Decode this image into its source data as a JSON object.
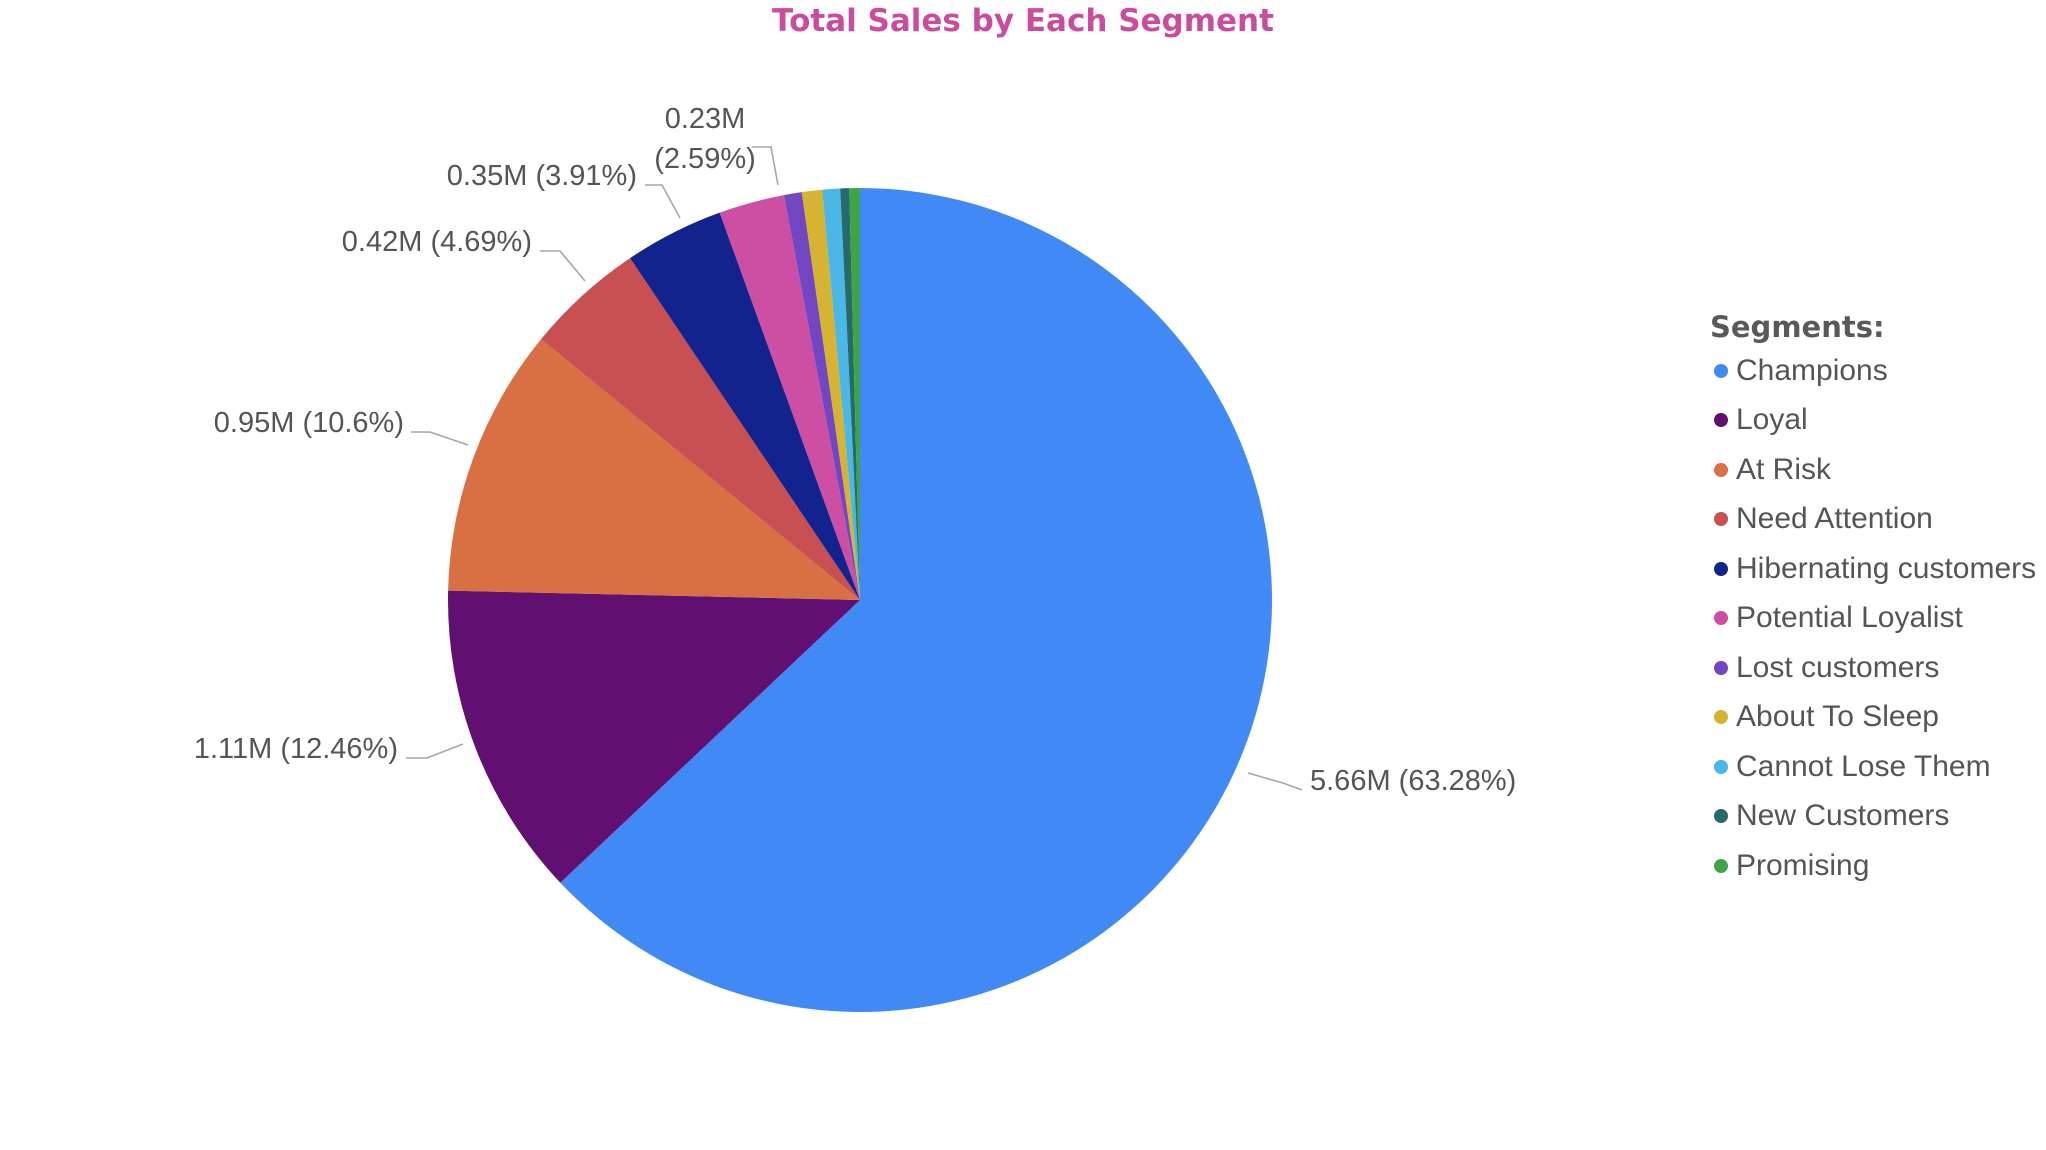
{
  "chart_data": {
    "type": "pie",
    "title": "Total Sales by Each Segment",
    "legend_title": "Segments:",
    "legend_position": "right",
    "slices": [
      {
        "name": "Champions",
        "value": 5.66,
        "percent": 63.28,
        "label": "5.66M (63.28%)",
        "color": "#418af5"
      },
      {
        "name": "Loyal",
        "value": 1.11,
        "percent": 12.46,
        "label": "1.11M (12.46%)",
        "color": "#610f70"
      },
      {
        "name": "At Risk",
        "value": 0.95,
        "percent": 10.6,
        "label": "0.95M (10.6%)",
        "color": "#d87043"
      },
      {
        "name": "Need Attention",
        "value": 0.42,
        "percent": 4.69,
        "label": "0.42M (4.69%)",
        "color": "#c84f52"
      },
      {
        "name": "Hibernating customers",
        "value": 0.35,
        "percent": 3.91,
        "label": "0.35M (3.91%)",
        "color": "#13238e"
      },
      {
        "name": "Potential Loyalist",
        "value": 0.23,
        "percent": 2.59,
        "label_lines": [
          "0.23M",
          "(2.59%)"
        ],
        "color": "#cc4fa3"
      },
      {
        "name": "Lost customers",
        "percent": 0.7,
        "color": "#7346c2"
      },
      {
        "name": "About To Sleep",
        "percent": 0.8,
        "color": "#d6b331"
      },
      {
        "name": "Cannot Lose Them",
        "percent": 0.7,
        "color": "#4ab7e6"
      },
      {
        "name": "New Customers",
        "percent": 0.35,
        "color": "#276a6a"
      },
      {
        "name": "Promising",
        "percent": 0.42,
        "color": "#3ea447"
      }
    ]
  }
}
